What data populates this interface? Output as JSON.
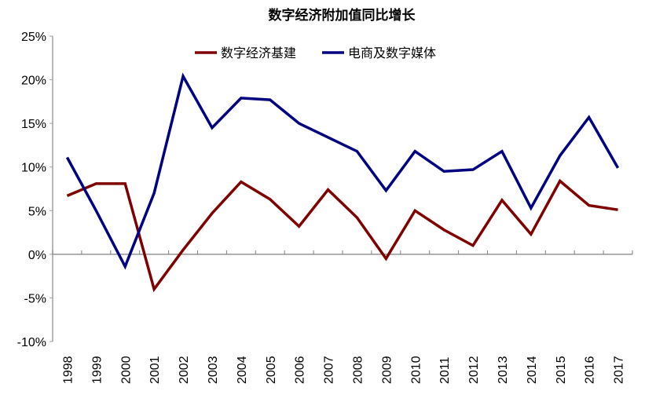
{
  "chart_data": {
    "type": "line",
    "title": "数字经济附加值同比增长",
    "xlabel": "",
    "ylabel": "",
    "categories": [
      "1998",
      "1999",
      "2000",
      "2001",
      "2002",
      "2003",
      "2004",
      "2005",
      "2006",
      "2007",
      "2008",
      "2009",
      "2010",
      "2011",
      "2012",
      "2013",
      "2014",
      "2015",
      "2016",
      "2017"
    ],
    "ylim": [
      -10,
      25
    ],
    "yticks": [
      "-10%",
      "-5%",
      "0%",
      "5%",
      "10%",
      "15%",
      "20%",
      "25%"
    ],
    "ytick_values": [
      -10,
      -5,
      0,
      5,
      10,
      15,
      20,
      25
    ],
    "grid": false,
    "legend_position": "top-center",
    "series": [
      {
        "name": "数字经济基建",
        "color": "#7f0000",
        "values": [
          6.7,
          8.1,
          8.1,
          -4.0,
          0.5,
          4.7,
          8.3,
          6.3,
          3.2,
          7.4,
          4.2,
          -0.5,
          5.0,
          2.8,
          1.0,
          6.2,
          2.3,
          8.4,
          5.6,
          5.1
        ]
      },
      {
        "name": "电商及数字媒体",
        "color": "#000080",
        "values": [
          11.1,
          5.0,
          -1.4,
          7.0,
          20.4,
          14.5,
          17.9,
          17.7,
          15.0,
          13.4,
          11.8,
          7.3,
          11.8,
          9.5,
          9.7,
          11.8,
          5.3,
          11.3,
          15.7,
          9.9
        ]
      }
    ]
  }
}
